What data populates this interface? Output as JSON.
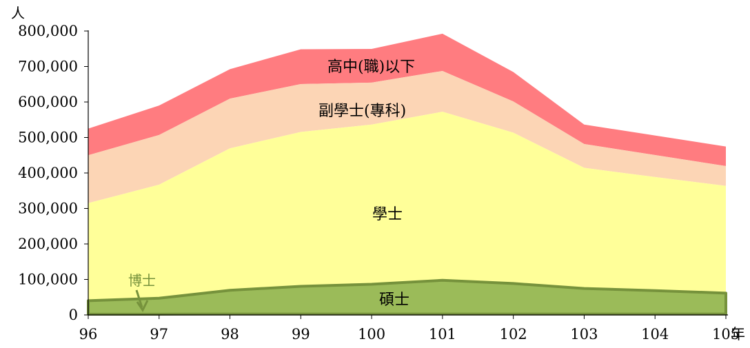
{
  "chart_data": {
    "type": "area",
    "stacked": true,
    "y_unit": "人",
    "x_unit": "年",
    "categories": [
      "96",
      "97",
      "98",
      "99",
      "100",
      "101",
      "102",
      "103",
      "104",
      "105"
    ],
    "ylim": [
      0,
      800000
    ],
    "y_ticks": [
      "0",
      "100,000",
      "200,000",
      "300,000",
      "400,000",
      "500,000",
      "600,000",
      "700,000",
      "800,000"
    ],
    "y_tick_values": [
      0,
      100000,
      200000,
      300000,
      400000,
      500000,
      600000,
      700000,
      800000
    ],
    "grid": false,
    "series": [
      {
        "name": "博士",
        "color": "#76923c",
        "values": [
          2000,
          2000,
          2500,
          2500,
          2500,
          2500,
          2500,
          2500,
          2500,
          2500
        ]
      },
      {
        "name": "碩士",
        "color": "#9bbb59",
        "values": [
          38000,
          45000,
          67000,
          78000,
          84000,
          95000,
          86000,
          72000,
          66000,
          59000
        ]
      },
      {
        "name": "學士",
        "color": "#ffff99",
        "values": [
          275000,
          320000,
          400000,
          435000,
          450000,
          475000,
          425000,
          340000,
          320000,
          302000
        ]
      },
      {
        "name": "副學士(專科)",
        "color": "#fcd5b5",
        "values": [
          135000,
          140000,
          140000,
          135000,
          118000,
          115000,
          88000,
          67000,
          62000,
          56000
        ]
      },
      {
        "name": "高中(職)以下",
        "color": "#ff7c80",
        "values": [
          75000,
          83000,
          83000,
          98000,
          95000,
          105000,
          83000,
          55000,
          55000,
          55000
        ]
      }
    ]
  }
}
